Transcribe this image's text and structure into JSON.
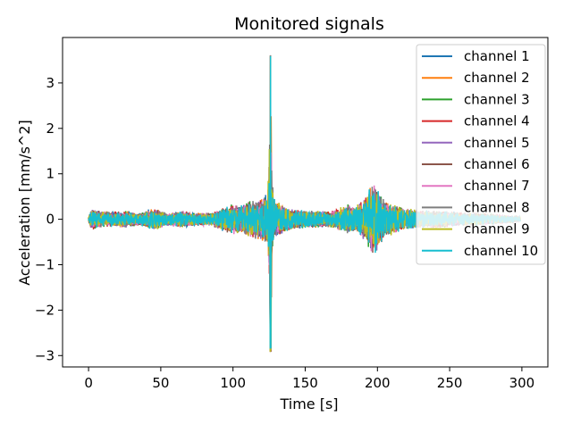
{
  "chart_data": {
    "type": "line",
    "title": "Monitored signals",
    "xlabel": "Time [s]",
    "ylabel": "Acceleration [mm/s^2]",
    "xlim": [
      -18,
      318
    ],
    "ylim": [
      -3.25,
      4.0
    ],
    "xticks": [
      0,
      50,
      100,
      150,
      200,
      250,
      300
    ],
    "yticks": [
      -3,
      -2,
      -1,
      0,
      1,
      2,
      3
    ],
    "grid": false,
    "legend_position": "top-right",
    "series": [
      {
        "name": "channel 1",
        "color": "#1f77b4"
      },
      {
        "name": "channel 2",
        "color": "#ff7f0e"
      },
      {
        "name": "channel 3",
        "color": "#2ca02c"
      },
      {
        "name": "channel 4",
        "color": "#d62728"
      },
      {
        "name": "channel 5",
        "color": "#9467bd"
      },
      {
        "name": "channel 6",
        "color": "#8c564b"
      },
      {
        "name": "channel 7",
        "color": "#e377c2"
      },
      {
        "name": "channel 8",
        "color": "#7f7f7f"
      },
      {
        "name": "channel 9",
        "color": "#bcbd22"
      },
      {
        "name": "channel 10",
        "color": "#17becf"
      }
    ],
    "signal_envelope": {
      "description_points_time_s": [
        0,
        2,
        5,
        15,
        25,
        35,
        45,
        55,
        65,
        75,
        85,
        95,
        100,
        105,
        110,
        115,
        120,
        124,
        125,
        126,
        127,
        128,
        130,
        140,
        150,
        160,
        170,
        180,
        185,
        190,
        195,
        198,
        200,
        205,
        210,
        220,
        230,
        240,
        250,
        260,
        270,
        280,
        290,
        299
      ],
      "amplitude": [
        0.05,
        0.3,
        0.2,
        0.18,
        0.2,
        0.15,
        0.25,
        0.15,
        0.2,
        0.15,
        0.15,
        0.3,
        0.35,
        0.3,
        0.4,
        0.45,
        0.5,
        0.6,
        1.5,
        3.6,
        1.0,
        0.5,
        0.4,
        0.25,
        0.2,
        0.2,
        0.2,
        0.35,
        0.3,
        0.45,
        0.75,
        0.8,
        0.7,
        0.45,
        0.35,
        0.25,
        0.2,
        0.2,
        0.18,
        0.15,
        0.15,
        0.12,
        0.1,
        0.05
      ],
      "spike": {
        "time": 126,
        "max": 3.65,
        "min": -2.92
      }
    }
  }
}
